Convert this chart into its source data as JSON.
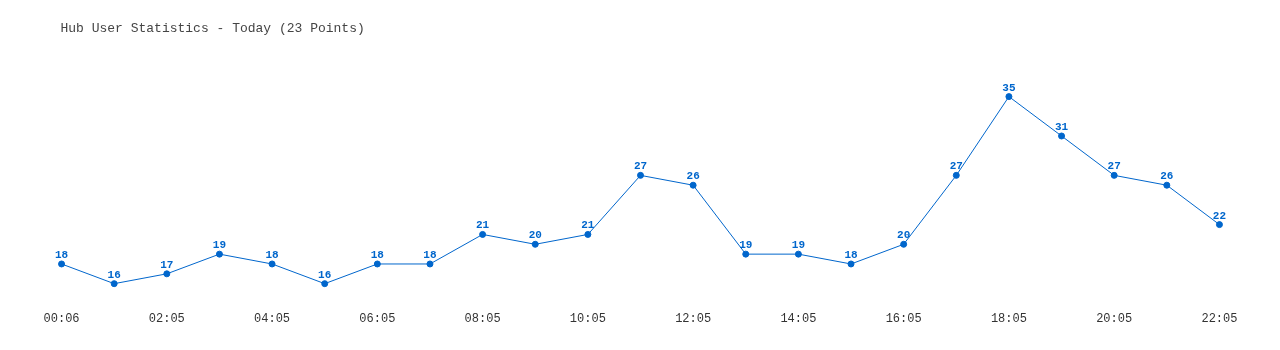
{
  "chart_data": {
    "type": "line",
    "title": "Hub User Statistics - Today (23 Points)",
    "categories": [
      "00:06",
      null,
      "02:05",
      null,
      "04:05",
      null,
      "06:05",
      null,
      "08:05",
      null,
      "10:05",
      null,
      "12:05",
      null,
      "14:05",
      null,
      "16:05",
      null,
      "18:05",
      null,
      "20:05",
      null,
      "22:05"
    ],
    "series": [
      {
        "color": "#0066cc",
        "values": [
          18,
          16,
          17,
          19,
          18,
          16,
          18,
          18,
          21,
          20,
          21,
          27,
          26,
          19,
          19,
          18,
          20,
          27,
          35,
          31,
          27,
          26,
          22
        ]
      }
    ],
    "data_labels": true,
    "marker": "circle"
  }
}
